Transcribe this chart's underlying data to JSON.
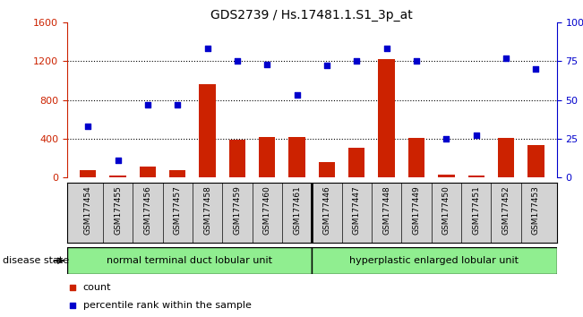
{
  "title": "GDS2739 / Hs.17481.1.S1_3p_at",
  "samples": [
    "GSM177454",
    "GSM177455",
    "GSM177456",
    "GSM177457",
    "GSM177458",
    "GSM177459",
    "GSM177460",
    "GSM177461",
    "GSM177446",
    "GSM177447",
    "GSM177448",
    "GSM177449",
    "GSM177450",
    "GSM177451",
    "GSM177452",
    "GSM177453"
  ],
  "counts": [
    75,
    20,
    110,
    80,
    960,
    390,
    420,
    420,
    160,
    310,
    1220,
    410,
    30,
    25,
    410,
    330
  ],
  "percentiles": [
    33,
    11,
    47,
    47,
    83,
    75,
    73,
    53,
    72,
    75,
    83,
    75,
    25,
    27,
    77,
    70
  ],
  "group1_label": "normal terminal duct lobular unit",
  "group1_count": 8,
  "group2_label": "hyperplastic enlarged lobular unit",
  "group2_count": 8,
  "disease_state_label": "disease state",
  "ylim_left": [
    0,
    1600
  ],
  "ylim_right": [
    0,
    100
  ],
  "yticks_left": [
    0,
    400,
    800,
    1200,
    1600
  ],
  "yticks_right": [
    0,
    25,
    50,
    75,
    100
  ],
  "bar_color": "#cc2200",
  "scatter_color": "#0000cc",
  "group_color": "#90ee90",
  "sample_box_color": "#d3d3d3",
  "title_color": "#000000",
  "left_axis_color": "#cc2200",
  "right_axis_color": "#0000cc"
}
